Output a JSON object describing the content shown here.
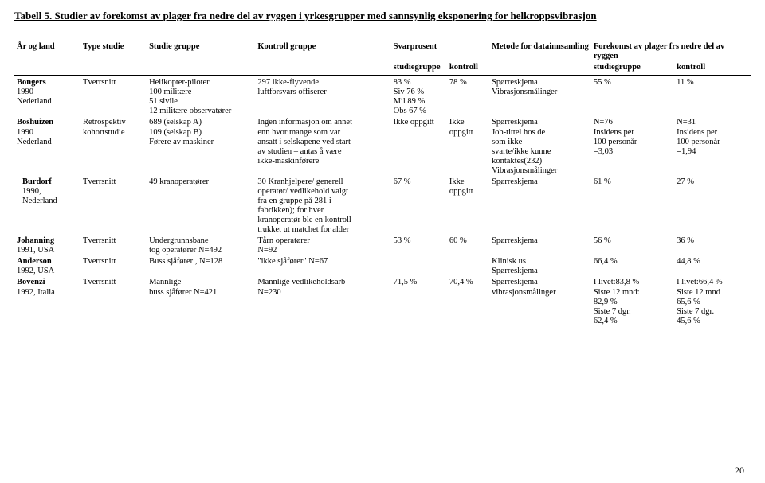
{
  "title": "Tabell 5. Studier av forekomst av plager fra nedre del av ryggen  i yrkesgrupper med sannsynlig eksponering for helkroppsvibrasjon",
  "page_number": "20",
  "headers": {
    "aar_og_land": "År og land",
    "type_studie": "Type studie",
    "studie_gruppe": "Studie gruppe",
    "kontroll_gruppe": "Kontroll gruppe",
    "svarprosent": "Svarprosent",
    "metode": "Metode for datainnsamling",
    "forekomst": "Forekomst av plager frs nedre del av ryggen",
    "sub_studiegruppe": "studiegruppe",
    "sub_kontroll": "kontroll"
  },
  "rows": [
    {
      "aar": "Bongers\n1990\nNederland",
      "type": "Tverrsnitt",
      "sg": "Helikopter-piloter\n100 militære\n51 sivile\n12 militære observatører",
      "kg": "297 ikke-flyvende\nluftforsvars offiserer",
      "sv_sg": "83 %\nSiv 76 %\nMil 89 %\nObs 67 %",
      "sv_k": "78 %",
      "met": "Spørreskjema\nVibrasjonsmålinger",
      "fr_sg": "55 %",
      "fr_k": "11 %"
    },
    {
      "aar": "Boshuizen\n1990\nNederland",
      "type": "Retrospektiv\nkohortstudie",
      "sg": "689 (selskap A)\n109 (selskap B)\nFørere av maskiner",
      "kg": "Ingen informasjon om annet\nenn hvor mange som var\nansatt i selskapene ved start\nav studien – antas å være\nikke-maskinførere",
      "sv_sg": "Ikke oppgitt",
      "sv_k": "Ikke\noppgitt",
      "met": "Spørreskjema\nJob-tittel hos de\nsom ikke\nsvarte/ikke kunne\nkontaktes(232)\nVibrasjonsmålinger",
      "fr_sg": "N=76\nInsidens per\n100 personår\n=3,03",
      "fr_k": "N=31\nInsidens per\n100 personår\n=1,94"
    },
    {
      "aar": "Burdorf\n1990,\nNederland",
      "type": "Tverrsnitt",
      "sg": "49 kranoperatører",
      "kg": "30 Kranhjelpere/ generell\noperatør/ vedlikehold valgt\nfra en gruppe på 281 i\nfabrikken); for  hver\nkranoperatør ble en kontroll\ntrukket ut matchet for alder",
      "sv_sg": "67 %",
      "sv_k": "Ikke\noppgitt",
      "met": "Spørreskjema",
      "fr_sg": "61 %",
      "fr_k": "27 %"
    },
    {
      "aar": "Johanning\n1991, USA",
      "type": "Tverrsnitt",
      "sg": "Undergrunnsbane\ntog operatører N=492",
      "kg": "Tårn operatører\nN=92",
      "sv_sg": "53 %",
      "sv_k": "60 %",
      "met": "Spørreskjema",
      "fr_sg": "56 %",
      "fr_k": "36 %"
    },
    {
      "aar": "Anderson\n1992, USA",
      "type": "Tverrsnitt",
      "sg": "Buss sjåfører , N=128",
      "kg": "\"ikke sjåfører\" N=67",
      "sv_sg": "",
      "sv_k": "",
      "met": "Klinisk us\nSpørreskjema",
      "fr_sg": "66,4 %",
      "fr_k": "44,8 %"
    },
    {
      "aar": "Bovenzi\n1992, Italia",
      "type": "Tverrsnitt",
      "sg": "Mannlige\nbuss sjåfører N=421",
      "kg": "Mannlige vedlikeholdsarb\nN=230",
      "sv_sg": "71,5 %",
      "sv_k": "70,4 %",
      "met": "Spørreskjema\nvibrasjonsmålinger",
      "fr_sg": "I livet:83,8 %\nSiste 12 mnd:\n82,9 %\nSiste 7 dgr.\n62,4 %",
      "fr_k": "I livet:66,4 %\nSiste 12 mnd\n65,6 %\nSiste 7 dgr.\n45,6 %"
    }
  ]
}
